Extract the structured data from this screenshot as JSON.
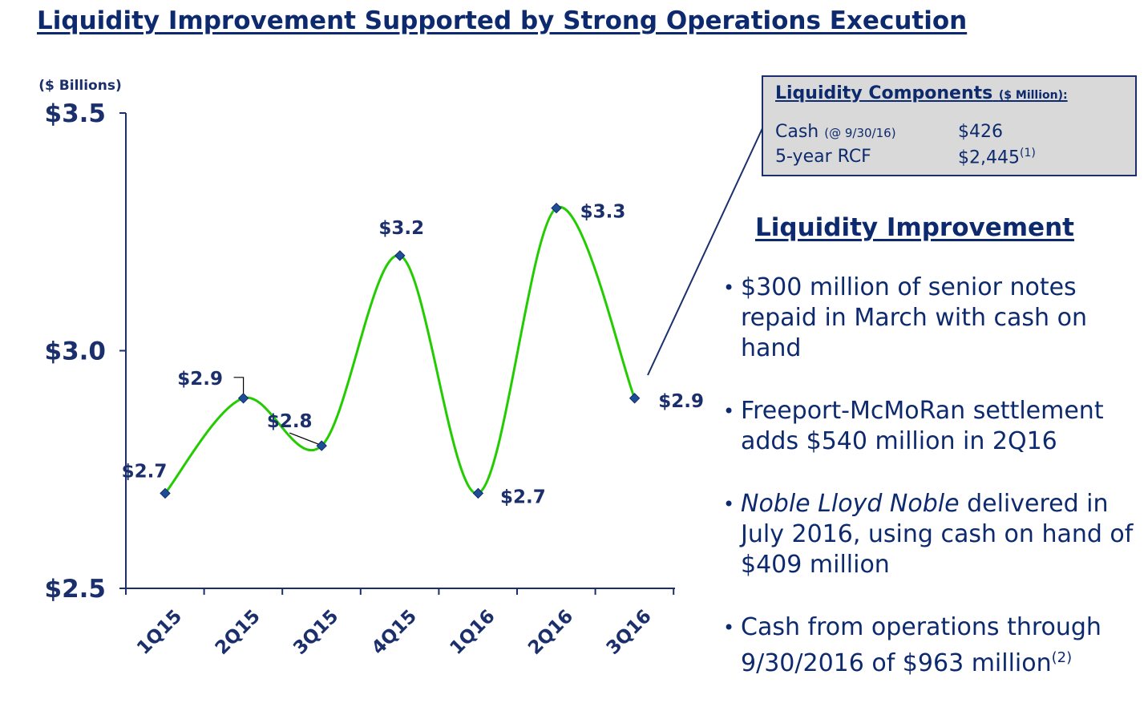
{
  "title": "Liquidity Improvement Supported by Strong Operations Execution",
  "chart_data": {
    "type": "line",
    "unit_label": "($ Billions)",
    "categories": [
      "1Q15",
      "2Q15",
      "3Q15",
      "4Q15",
      "1Q16",
      "2Q16",
      "3Q16"
    ],
    "values": [
      2.7,
      2.9,
      2.8,
      3.2,
      2.7,
      3.3,
      2.9
    ],
    "data_labels": [
      "$2.7",
      "$2.9",
      "$2.8",
      "$3.2",
      "$2.7",
      "$3.3",
      "$2.9"
    ],
    "yticks": [
      2.5,
      3.0,
      3.5
    ],
    "ytick_labels": [
      "$2.5",
      "$3.0",
      "$3.5"
    ],
    "ylim": [
      2.5,
      3.5
    ],
    "grid": false,
    "line_color": "#22cc00",
    "marker_color": "#1f4e96",
    "text_color": "#1a2f6b"
  },
  "components": {
    "title": "Liquidity Components",
    "unit": "($ Million):",
    "rows": [
      {
        "label": "Cash",
        "note": "(@ 9/30/16)",
        "value": "$426",
        "sup": ""
      },
      {
        "label": "5-year RCF",
        "note": "",
        "value": "$2,445",
        "sup": "(1)"
      }
    ]
  },
  "improvement": {
    "title": "Liquidity Improvement",
    "b1": "$300 million of senior notes repaid in March with cash on hand",
    "b2": "Freeport-McMoRan settlement adds $540 million in 2Q16",
    "b3_italic": "Noble Lloyd Noble",
    "b3_rest": " delivered in July 2016, using cash on hand of $409 million",
    "b4": "Cash from operations through 9/30/2016 of $963 million",
    "b4_sup": "(2)"
  }
}
